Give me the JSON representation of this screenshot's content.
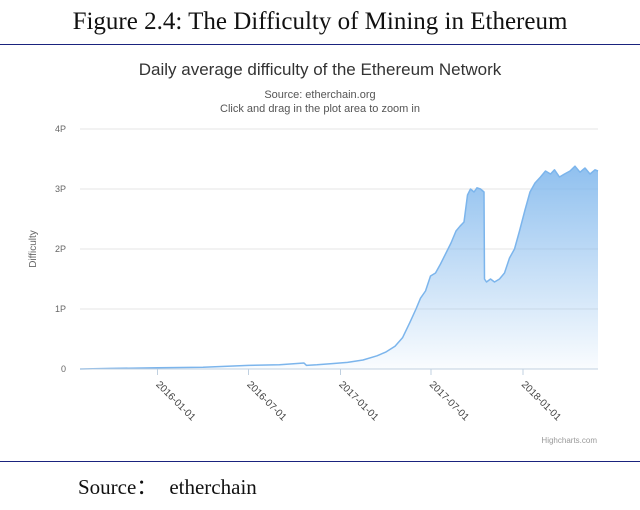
{
  "figure": {
    "title": "Figure 2.4: The Difficulty of Mining in Ethereum",
    "source_label": "Source：",
    "source_value": "etherchain"
  },
  "credits": "Highcharts.com",
  "chart_data": {
    "type": "area",
    "title": "Daily average difficulty of the Ethereum Network",
    "subtitle": "Source: etherchain.org",
    "subtitle2": "Click and drag in the plot area to zoom in",
    "ylabel": "Difficulty",
    "xlabel": "",
    "ylim": [
      0,
      4
    ],
    "yticks": [
      0,
      1,
      2,
      3,
      4
    ],
    "ytick_labels": [
      "0",
      "1P",
      "2P",
      "3P",
      "4P"
    ],
    "xlim": [
      "2015-07-30",
      "2018-05-31"
    ],
    "xticks": [
      "2016-01-01",
      "2016-07-01",
      "2017-01-01",
      "2017-07-01",
      "2018-01-01"
    ],
    "grid": true,
    "legend": "none",
    "color": "#7cb5ec",
    "series": [
      {
        "x": [
          "2015-07-30",
          "2015-10-01",
          "2016-01-01",
          "2016-04-01",
          "2016-06-01",
          "2016-07-01",
          "2016-09-01",
          "2016-10-20",
          "2016-10-25",
          "2016-11-15",
          "2016-12-15",
          "2017-01-15",
          "2017-02-15",
          "2017-03-15",
          "2017-04-01",
          "2017-04-20",
          "2017-05-05",
          "2017-05-20",
          "2017-06-01",
          "2017-06-10",
          "2017-06-20",
          "2017-06-30",
          "2017-07-10",
          "2017-07-20",
          "2017-08-01",
          "2017-08-10",
          "2017-08-20",
          "2017-08-28",
          "2017-09-05",
          "2017-09-12",
          "2017-09-18",
          "2017-09-25",
          "2017-10-01",
          "2017-10-08",
          "2017-10-15",
          "2017-10-16",
          "2017-10-20",
          "2017-10-28",
          "2017-11-05",
          "2017-11-15",
          "2017-11-25",
          "2017-12-05",
          "2017-12-15",
          "2017-12-25",
          "2018-01-05",
          "2018-01-15",
          "2018-01-25",
          "2018-02-05",
          "2018-02-15",
          "2018-02-25",
          "2018-03-05",
          "2018-03-15",
          "2018-03-25",
          "2018-04-05",
          "2018-04-15",
          "2018-04-25",
          "2018-05-05",
          "2018-05-15",
          "2018-05-25",
          "2018-05-31"
        ],
        "values": [
          0.0,
          0.01,
          0.02,
          0.03,
          0.05,
          0.06,
          0.07,
          0.1,
          0.06,
          0.07,
          0.09,
          0.11,
          0.15,
          0.22,
          0.28,
          0.38,
          0.52,
          0.78,
          1.0,
          1.18,
          1.3,
          1.55,
          1.6,
          1.75,
          1.95,
          2.1,
          2.3,
          2.38,
          2.45,
          2.9,
          3.0,
          2.95,
          3.02,
          3.0,
          2.95,
          1.5,
          1.45,
          1.5,
          1.45,
          1.5,
          1.6,
          1.85,
          2.0,
          2.3,
          2.65,
          2.95,
          3.1,
          3.2,
          3.3,
          3.25,
          3.32,
          3.2,
          3.25,
          3.3,
          3.38,
          3.28,
          3.35,
          3.25,
          3.32,
          3.3
        ]
      }
    ]
  }
}
